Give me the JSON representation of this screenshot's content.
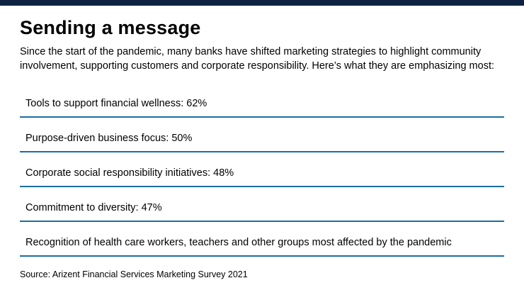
{
  "colors": {
    "top_bar": "#0d2240",
    "divider_blue": "#1c6ea4",
    "background": "#ffffff",
    "text": "#000000"
  },
  "header": {
    "title": "Sending a message",
    "subtitle": "Since the start of the pandemic, many banks have shifted marketing strategies to highlight community involvement, supporting customers and corporate responsibility. Here’s what they are emphasizing most:"
  },
  "items": [
    {
      "label": "Tools to support financial wellness: 62%"
    },
    {
      "label": "Purpose-driven business focus: 50%"
    },
    {
      "label": "Corporate social responsibility initiatives: 48%"
    },
    {
      "label": "Commitment to diversity: 47%"
    },
    {
      "label": "Recognition of health care workers, teachers and other groups most affected by the pandemic"
    }
  ],
  "footer": {
    "source": "Source: Arizent Financial Services Marketing Survey 2021"
  },
  "chart_data": {
    "type": "table",
    "title": "Sending a message",
    "subtitle": "Since the start of the pandemic, many banks have shifted marketing strategies to highlight community involvement, supporting customers and corporate responsibility. Here’s what they are emphasizing most:",
    "categories": [
      "Tools to support financial wellness",
      "Purpose-driven business focus",
      "Corporate social responsibility initiatives",
      "Commitment to diversity",
      "Recognition of health care workers, teachers and other groups most affected by the pandemic"
    ],
    "values": [
      62,
      50,
      48,
      47,
      null
    ],
    "value_unit": "%",
    "source": "Arizent Financial Services Marketing Survey 2021",
    "layout": "horizontal list with blue divider rules, no axes, no legend"
  }
}
